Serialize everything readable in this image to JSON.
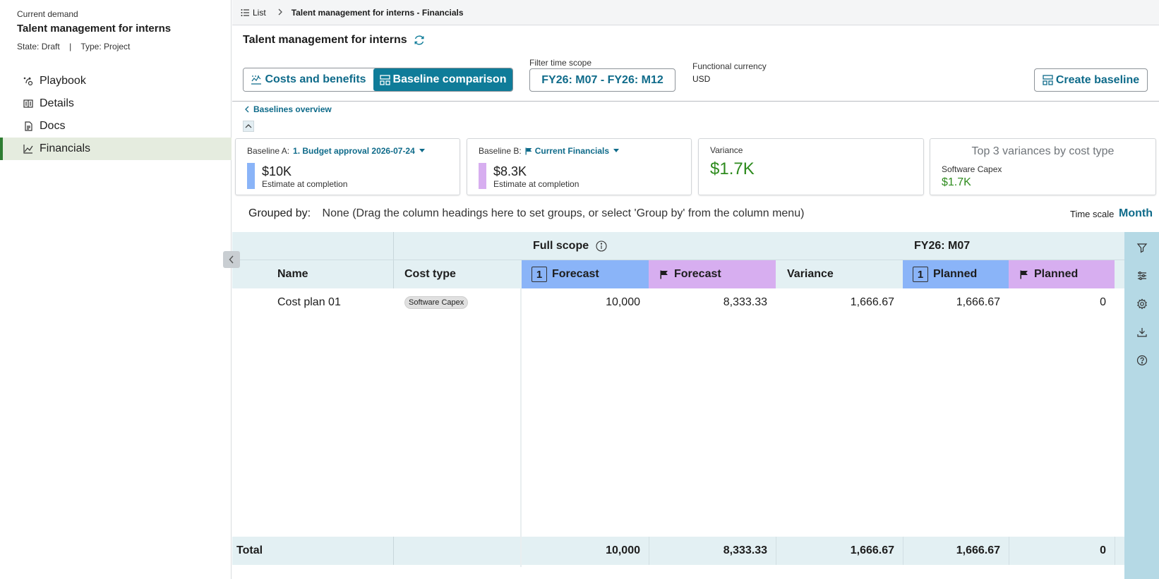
{
  "sidebar": {
    "eyebrow": "Current demand",
    "title": "Talent management for interns",
    "state_label": "State:",
    "state_value": "Draft",
    "separator": "|",
    "type_label": "Type:",
    "type_value": "Project",
    "items": [
      {
        "label": "Playbook",
        "icon": "playbook-icon"
      },
      {
        "label": "Details",
        "icon": "details-icon"
      },
      {
        "label": "Docs",
        "icon": "document-icon"
      },
      {
        "label": "Financials",
        "icon": "chart-line-icon",
        "active": true
      }
    ]
  },
  "breadcrumb": {
    "list_label": "List",
    "current": "Talent management for interns - Financials"
  },
  "header": {
    "title": "Talent management for interns",
    "tabs": [
      {
        "label": "Costs and benefits",
        "active": false
      },
      {
        "label": "Baseline comparison",
        "active": true
      }
    ],
    "filter_label": "Filter time scope",
    "filter_value": "FY26: M07 - FY26: M12",
    "currency_label": "Functional currency",
    "currency_value": "USD",
    "create_button": "Create baseline"
  },
  "baselines_overview": "Baselines overview",
  "cards": {
    "a": {
      "label": "Baseline A:",
      "selection": "1. Budget approval 2026-07-24",
      "amount": "$10K",
      "sub": "Estimate at completion",
      "color": "#8ab4f8"
    },
    "b": {
      "label": "Baseline B:",
      "selection": "Current Financials",
      "amount": "$8.3K",
      "sub": "Estimate at completion",
      "color": "#d7aef0"
    },
    "variance": {
      "label": "Variance",
      "amount": "$1.7K"
    },
    "top3": {
      "title": "Top 3 variances by cost type",
      "name": "Software Capex",
      "amount": "$1.7K"
    }
  },
  "grouping": {
    "label": "Grouped by:",
    "hint": "None (Drag the column headings here to set groups, or select 'Group by' from the column menu)",
    "time_scale_label": "Time scale",
    "time_scale_value": "Month"
  },
  "grid": {
    "group_headers": {
      "full_scope": "Full scope",
      "period": "FY26: M07"
    },
    "columns": {
      "name": "Name",
      "cost_type": "Cost type",
      "forecast_a": "Forecast",
      "forecast_b": "Forecast",
      "variance": "Variance",
      "planned_a": "Planned",
      "planned_b": "Planned"
    },
    "baseline_badge": "1",
    "rows": [
      {
        "name": "Cost plan 01",
        "cost_type": "Software Capex",
        "forecast_a": "10,000",
        "forecast_b": "8,333.33",
        "variance": "1,666.67",
        "planned_a": "1,666.67",
        "planned_b": "0"
      }
    ],
    "total": {
      "label": "Total",
      "forecast_a": "10,000",
      "forecast_b": "8,333.33",
      "variance": "1,666.67",
      "planned_a": "1,666.67",
      "planned_b": "0"
    },
    "colors": {
      "baseline_a": "#8ab4f8",
      "baseline_b": "#d7aef0",
      "header_bg": "#e3f0f3",
      "toolbar_bg": "#b5d9e5"
    }
  },
  "side_tools": [
    "filter-icon",
    "columns-icon",
    "settings-icon",
    "download-icon",
    "help-icon"
  ]
}
